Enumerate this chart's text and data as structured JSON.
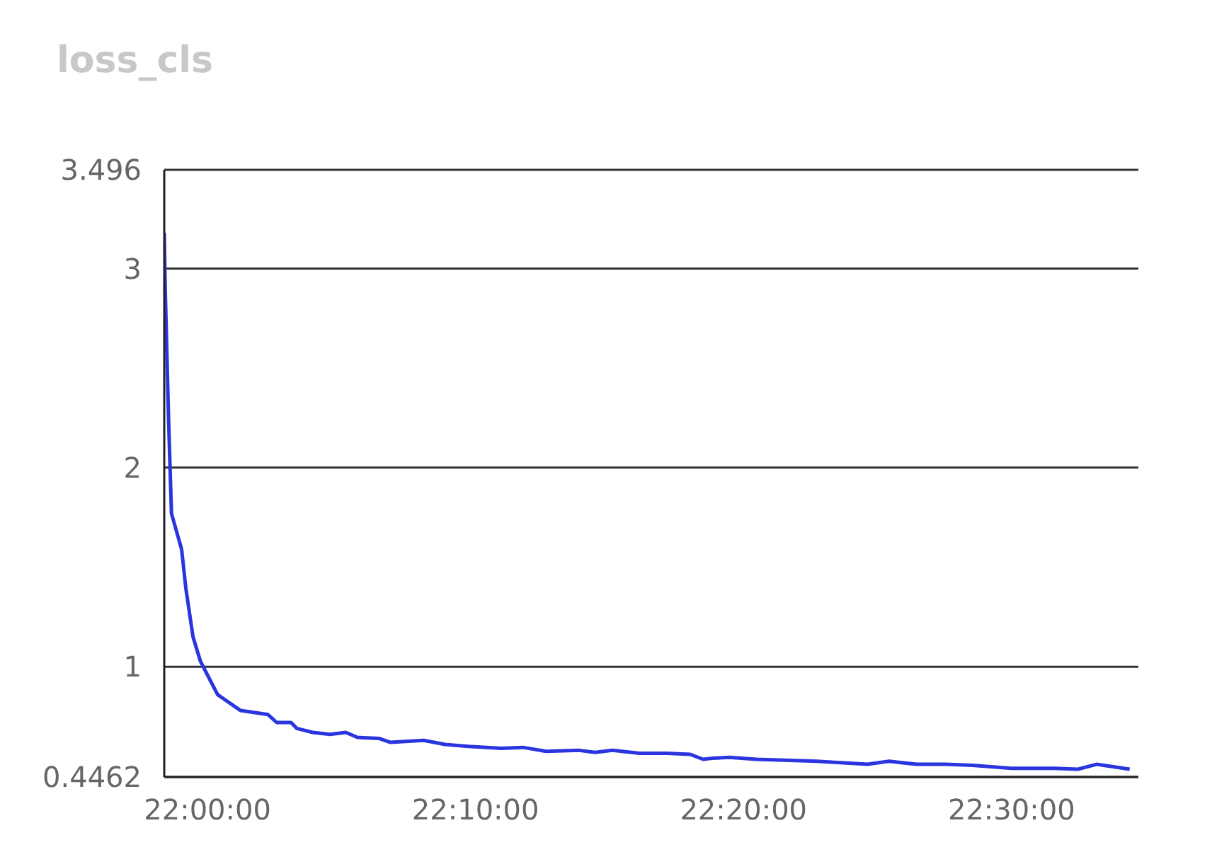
{
  "chart_data": {
    "type": "line",
    "title": "loss_cls",
    "x": [
      21.9731,
      21.9737,
      21.9758,
      21.9776,
      21.9839,
      21.9866,
      21.991,
      21.9955,
      22.0018,
      22.0063,
      22.0116,
      22.0206,
      22.0376,
      22.043,
      22.052,
      22.0556,
      22.0654,
      22.0762,
      22.086,
      22.0932,
      22.1066,
      22.1138,
      22.1344,
      22.1478,
      22.1622,
      22.1828,
      22.1962,
      22.2106,
      22.2312,
      22.241,
      22.2518,
      22.2688,
      22.2858,
      22.3002,
      22.3082,
      22.3136,
      22.3244,
      22.3414,
      22.362,
      22.379,
      22.3898,
      22.4104,
      22.4238,
      22.4409,
      22.4588,
      22.4758,
      22.5,
      22.5269,
      22.5412,
      22.5529,
      22.5735
    ],
    "series": [
      {
        "color": "#2a35e0",
        "values": [
          3.18,
          2.9,
          2.24,
          1.77,
          1.59,
          1.39,
          1.15,
          1.03,
          0.93,
          0.86,
          0.83,
          0.78,
          0.76,
          0.72,
          0.72,
          0.69,
          0.67,
          0.66,
          0.67,
          0.645,
          0.64,
          0.62,
          0.63,
          0.61,
          0.6,
          0.59,
          0.595,
          0.575,
          0.58,
          0.57,
          0.58,
          0.565,
          0.565,
          0.56,
          0.535,
          0.54,
          0.545,
          0.535,
          0.53,
          0.525,
          0.52,
          0.51,
          0.525,
          0.51,
          0.51,
          0.505,
          0.49,
          0.49,
          0.485,
          0.51,
          0.485
        ]
      }
    ],
    "xlim": [
      21.9731,
      22.5789
    ],
    "xticks": [
      {
        "value": 22,
        "label": "22:00:00"
      },
      {
        "value": 22.16667,
        "label": "22:10:00"
      },
      {
        "value": 22.33333,
        "label": "22:20:00"
      },
      {
        "value": 22.5,
        "label": "22:30:00"
      }
    ],
    "ylim": [
      0.4462,
      3.496
    ],
    "yticks": [
      0.4462,
      1,
      2,
      3,
      3.496
    ],
    "grid": "y",
    "legend": false,
    "marker": "none",
    "line_style": "solid"
  }
}
